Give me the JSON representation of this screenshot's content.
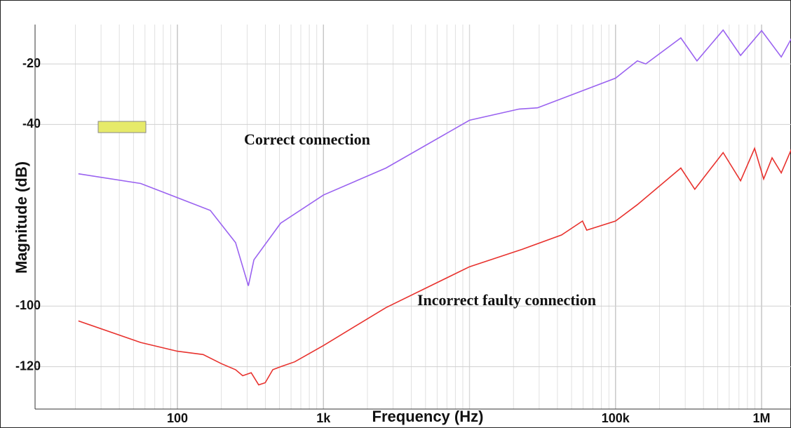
{
  "chart_data": {
    "type": "line",
    "xlabel": "Frequency (Hz)",
    "ylabel": "Magnitude (dB)",
    "xscale": "log",
    "grid": true,
    "xlim": [
      10.6,
      1590000
    ],
    "ylim": [
      -134,
      -7
    ],
    "xticks": [
      100,
      {
        "value": 1000,
        "label": "1k"
      },
      {
        "value": 100000,
        "label": "100k"
      },
      {
        "value": 1000000,
        "label": "1M"
      }
    ],
    "yticks": [
      -20,
      -40,
      -100,
      -120
    ],
    "series": [
      {
        "name": "Correct connection",
        "color": "#9a62f0",
        "x": [
          21,
          56,
          168,
          250,
          306,
          334,
          509,
          1000,
          2680,
          10000,
          21900,
          29200,
          100000,
          141000,
          161000,
          280000,
          361000,
          545000,
          718000,
          1000000,
          1364000,
          1610000
        ],
        "values": [
          -56.3,
          -59.5,
          -68.4,
          -79,
          -93.3,
          -84.7,
          -72.6,
          -63.3,
          -54.4,
          -38.6,
          -34.9,
          -34.5,
          -24.7,
          -19,
          -20,
          -11.4,
          -19,
          -8.8,
          -17.2,
          -9,
          -17.7,
          -11.4
        ]
      },
      {
        "name": "Incorrect faulty connection",
        "color": "#e8322e",
        "x": [
          21,
          56,
          100,
          150,
          200,
          250,
          280,
          320,
          360,
          399,
          450,
          509,
          635,
          1000,
          2680,
          10000,
          23000,
          42700,
          59400,
          63500,
          100000,
          141000,
          280000,
          349000,
          545000,
          718000,
          896000,
          1033000,
          1180000,
          1364000,
          1610000
        ],
        "values": [
          -104.9,
          -112,
          -114.9,
          -116,
          -119,
          -121,
          -123,
          -122,
          -126,
          -125.3,
          -121,
          -120,
          -118.4,
          -113,
          -100.5,
          -87,
          -81.2,
          -76.5,
          -71.9,
          -74.9,
          -71.9,
          -66.5,
          -54.4,
          -61.4,
          -49.3,
          -58.6,
          -47.9,
          -58,
          -51,
          -56,
          -47.9
        ]
      }
    ]
  }
}
